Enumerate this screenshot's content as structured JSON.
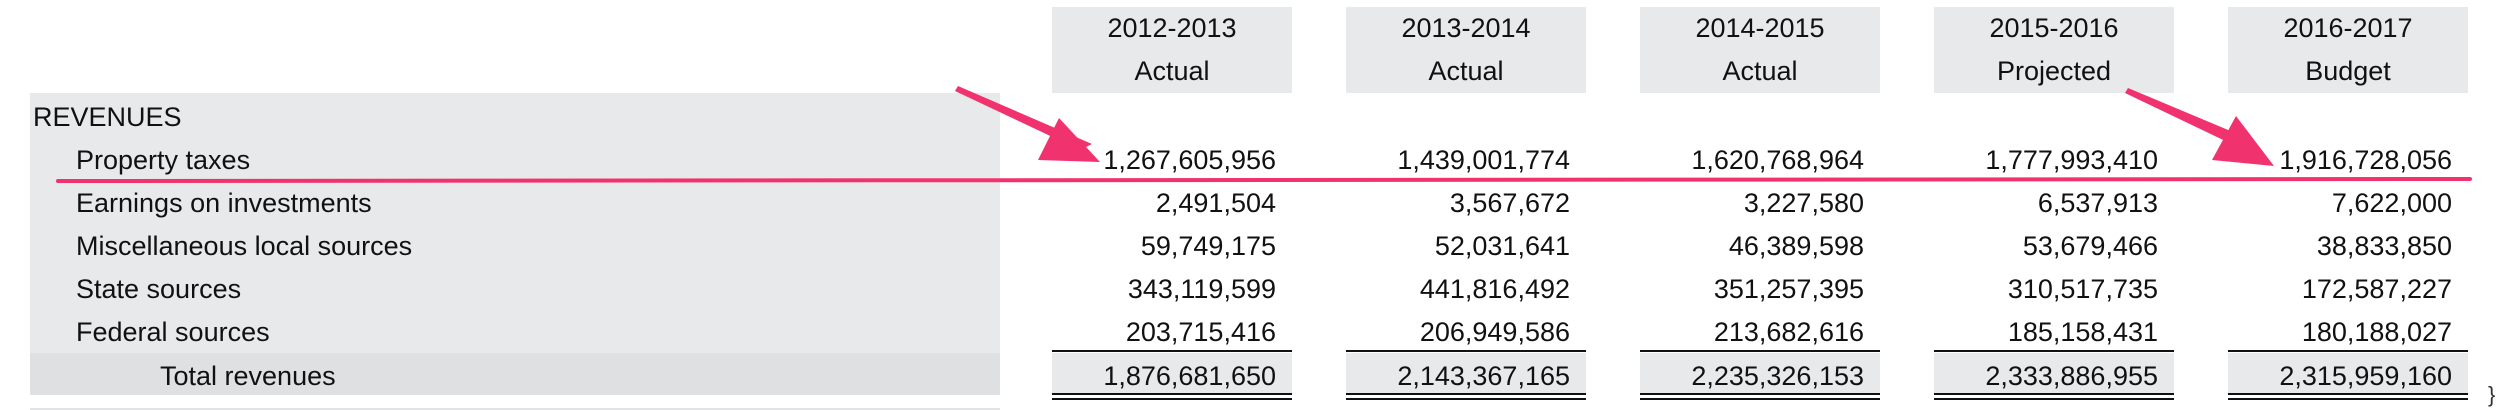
{
  "columns": [
    {
      "period": "2012-2013",
      "status": "Actual"
    },
    {
      "period": "2013-2014",
      "status": "Actual"
    },
    {
      "period": "2014-2015",
      "status": "Actual"
    },
    {
      "period": "2015-2016",
      "status": "Projected"
    },
    {
      "period": "2016-2017",
      "status": "Budget"
    }
  ],
  "section_title": "REVENUES",
  "rows": [
    {
      "label": "Property taxes",
      "values": [
        "1,267,605,956",
        "1,439,001,774",
        "1,620,768,964",
        "1,777,993,410",
        "1,916,728,056"
      ]
    },
    {
      "label": "Earnings on investments",
      "values": [
        "2,491,504",
        "3,567,672",
        "3,227,580",
        "6,537,913",
        "7,622,000"
      ]
    },
    {
      "label": "Miscellaneous local sources",
      "values": [
        "59,749,175",
        "52,031,641",
        "46,389,598",
        "53,679,466",
        "38,833,850"
      ]
    },
    {
      "label": "State sources",
      "values": [
        "343,119,599",
        "441,816,492",
        "351,257,395",
        "310,517,735",
        "172,587,227"
      ]
    },
    {
      "label": "Federal sources",
      "values": [
        "203,715,416",
        "206,949,586",
        "213,682,616",
        "185,158,431",
        "180,188,027"
      ]
    }
  ],
  "total": {
    "label": "Total revenues",
    "values": [
      "1,876,681,650",
      "2,143,367,165",
      "2,235,326,153",
      "2,333,886,955",
      "2,315,959,160"
    ]
  },
  "annotation_color": "#f0326e",
  "edge_glyph": "}"
}
